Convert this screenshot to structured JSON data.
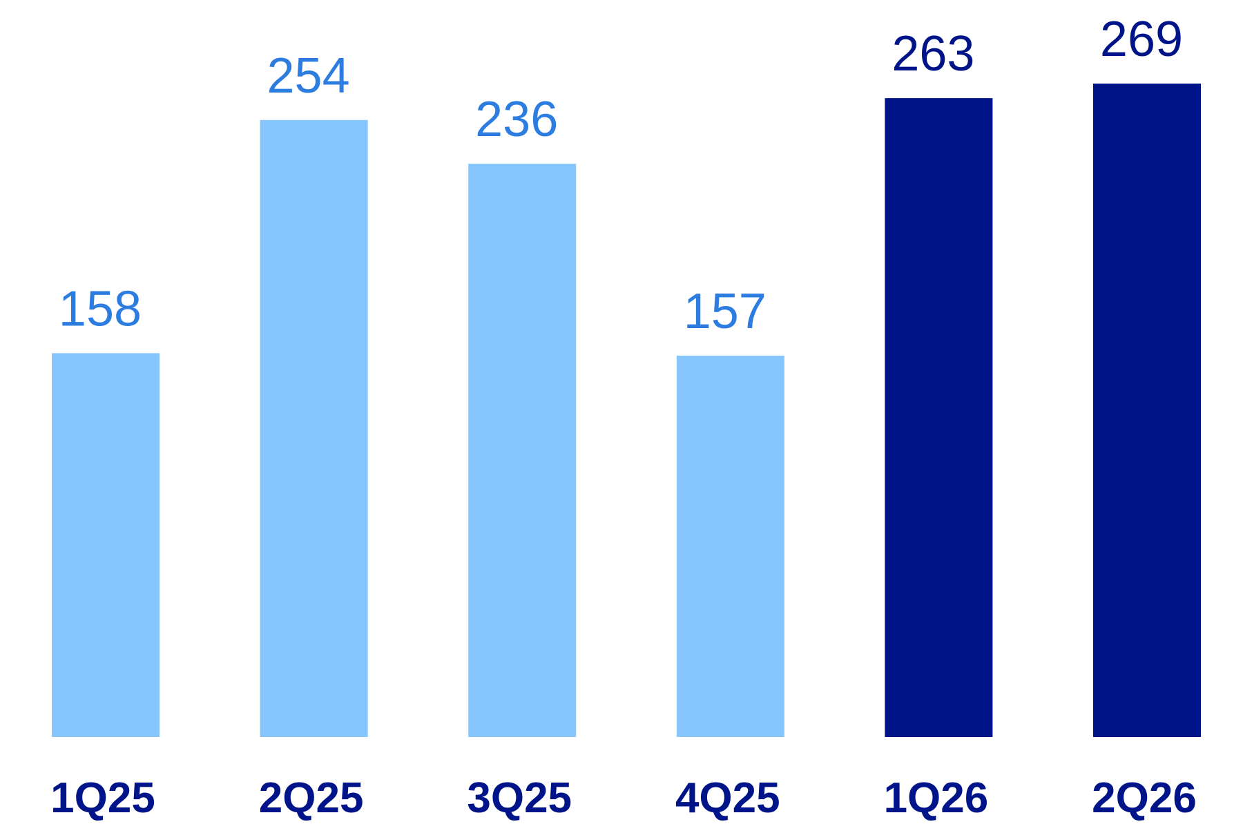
{
  "chart_data": {
    "type": "bar",
    "categories": [
      "1Q25",
      "2Q25",
      "3Q25",
      "4Q25",
      "1Q26",
      "2Q26"
    ],
    "values": [
      158,
      254,
      236,
      157,
      263,
      269
    ],
    "colors": [
      "#87c6fc",
      "#87c6fc",
      "#87c6fc",
      "#87c6fc",
      "#001489",
      "#001489"
    ],
    "label_colors": [
      "#2d7de0",
      "#2d7de0",
      "#2d7de0",
      "#2d7de0",
      "#001489",
      "#001489"
    ],
    "category_color": "#001489",
    "grid": false
  }
}
